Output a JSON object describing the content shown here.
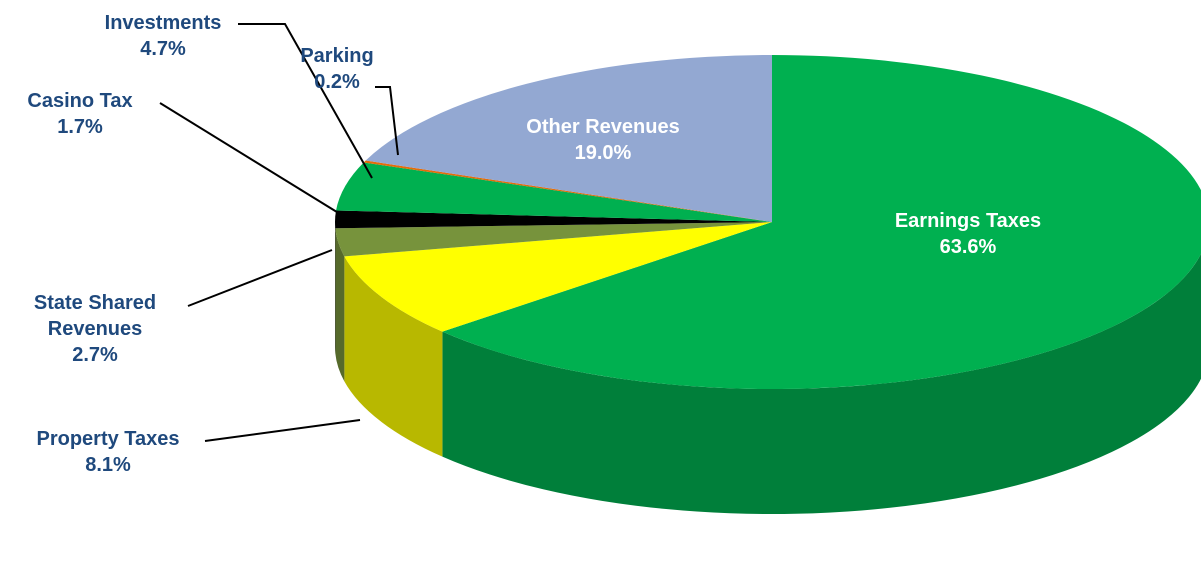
{
  "chart_data": {
    "type": "pie",
    "categories": [
      "Earnings Taxes",
      "Property Taxes",
      "State Shared Revenues",
      "Casino Tax",
      "Investments",
      "Parking",
      "Other Revenues"
    ],
    "values": [
      63.6,
      8.1,
      2.7,
      1.7,
      4.7,
      0.2,
      19.0
    ],
    "value_labels": [
      "63.6%",
      "8.1%",
      "2.7%",
      "1.7%",
      "4.7%",
      "0.2%",
      "19.0%"
    ],
    "colors": [
      "#00b050",
      "#ffff00",
      "#77933c",
      "#000000",
      "#00b050",
      "#e46c0a",
      "#93a8d2"
    ]
  }
}
